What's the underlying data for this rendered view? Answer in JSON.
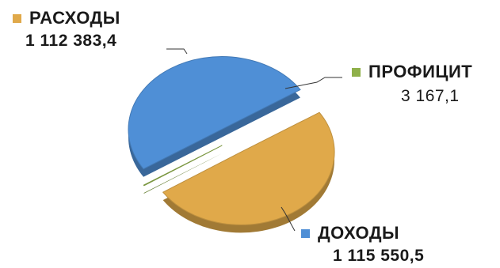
{
  "chart_data": {
    "type": "pie",
    "categories": [
      "РАСХОДЫ",
      "ПРОФИЦИТ",
      "ДОХОДЫ"
    ],
    "values": [
      1112383.4,
      3167.1,
      1115550.5
    ],
    "labels": [
      "1 112 383,4",
      "3 167,1",
      "1 115 550,5"
    ],
    "colors": [
      "#e0a94a",
      "#8fb04a",
      "#4f8fd6"
    ],
    "title": "",
    "legend": "beside-slices"
  }
}
